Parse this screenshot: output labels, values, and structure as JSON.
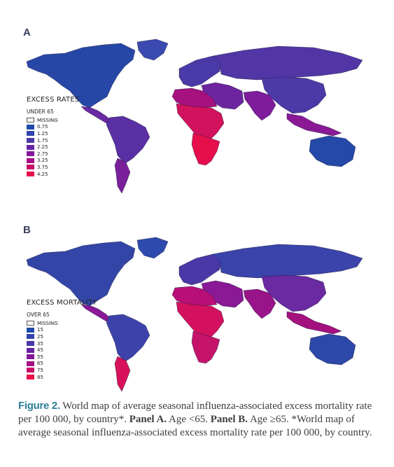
{
  "panels": [
    {
      "letter": "A",
      "legend_title": "EXCESS RATES",
      "legend_subtitle": "UNDER 65",
      "legend_items": [
        {
          "label": "MISSING",
          "color": "#ffffff"
        },
        {
          "label": "0.75",
          "color": "#1f4aa8"
        },
        {
          "label": "1.25",
          "color": "#3145ad"
        },
        {
          "label": "1.75",
          "color": "#4a38a6"
        },
        {
          "label": "2.25",
          "color": "#6424a3"
        },
        {
          "label": "2.75",
          "color": "#85169a"
        },
        {
          "label": "3.25",
          "color": "#a50e84"
        },
        {
          "label": "3.75",
          "color": "#c70f66"
        },
        {
          "label": "4.25",
          "color": "#e8104a"
        }
      ],
      "region_colors": {
        "north_america": "#2747a6",
        "greenland": "#3a4ab0",
        "central_america": "#6a2aa2",
        "south_america": "#5a2fa4",
        "south_america_south": "#7a1f9a",
        "europe": "#4a3aa8",
        "russia": "#5236a6",
        "middle_east": "#6d259f",
        "africa_north": "#a5117f",
        "africa": "#d2125c",
        "africa_south": "#e60f4c",
        "south_asia": "#7e1c9c",
        "east_asia": "#4c3aa7",
        "southeast_asia": "#8a1996",
        "australia": "#2549a8"
      }
    },
    {
      "letter": "B",
      "legend_title": "EXCESS MORTALITY",
      "legend_subtitle": "OVER 65",
      "legend_items": [
        {
          "label": "MISSING",
          "color": "#ffffff"
        },
        {
          "label": "15",
          "color": "#1f4aa8"
        },
        {
          "label": "25",
          "color": "#3145ad"
        },
        {
          "label": "35",
          "color": "#4a38a6"
        },
        {
          "label": "45",
          "color": "#6424a3"
        },
        {
          "label": "55",
          "color": "#85169a"
        },
        {
          "label": "65",
          "color": "#a50e84"
        },
        {
          "label": "75",
          "color": "#c70f66"
        },
        {
          "label": "85",
          "color": "#e8104a"
        }
      ],
      "region_colors": {
        "north_america": "#3346a8",
        "greenland": "#2f4aae",
        "central_america": "#8a1a97",
        "south_america": "#3d42aa",
        "south_america_south": "#d8125a",
        "europe": "#4a38a6",
        "russia": "#3a44ab",
        "middle_east": "#8a1996",
        "africa_north": "#b81078",
        "africa": "#d3115e",
        "africa_south": "#c41369",
        "south_asia": "#9a1489",
        "east_asia": "#6a2aa2",
        "southeast_asia": "#a5107f",
        "australia": "#2c48a8"
      }
    }
  ],
  "caption": {
    "label": "Figure 2.",
    "text_1": " World map of average seasonal influenza-associated excess mortality rate per 100 000, by country*.  ",
    "panel_a": "Panel A.",
    "text_2": " Age <65. ",
    "panel_b": "Panel B.",
    "text_3": " Age ≥65. *World map of average seasonal influenza-associated excess mortality rate per 100 000, by country."
  }
}
